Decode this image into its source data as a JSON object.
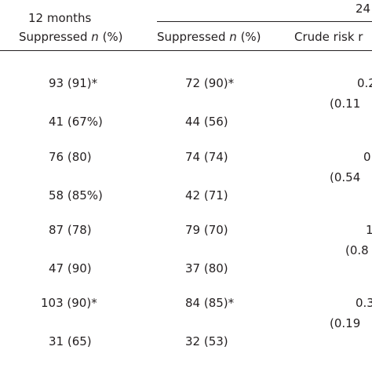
{
  "header": {
    "col12_top": "12 months",
    "col24_top": "24",
    "suppressed_label": "Suppressed ",
    "n_label": "n",
    "pct_label": " (%)",
    "crude_label": "Crude risk r"
  },
  "rows": [
    {
      "c12": "93 (91)*",
      "c24": "72 (90)*",
      "crude": "0.2",
      "ci": ""
    },
    {
      "c12": "",
      "c24": "",
      "crude": "",
      "ci": "(0.11"
    },
    {
      "c12": "41 (67%)",
      "c24": "44 (56)",
      "crude": "",
      "ci": ""
    },
    {
      "c12": "76 (80)",
      "c24": "74 (74)",
      "crude": "0",
      "ci": ""
    },
    {
      "c12": "",
      "c24": "",
      "crude": "",
      "ci": "(0.54"
    },
    {
      "c12": "58 (85%)",
      "c24": "42 (71)",
      "crude": "",
      "ci": ""
    },
    {
      "c12": "87 (78)",
      "c24": "79 (70)",
      "crude": "1",
      "ci": ""
    },
    {
      "c12": "",
      "c24": "",
      "crude": "",
      "ci": "(0.8"
    },
    {
      "c12": "47 (90)",
      "c24": "37 (80)",
      "crude": "",
      "ci": ""
    },
    {
      "c12": "103 (90)*",
      "c24": "84 (85)*",
      "crude": "0.3",
      "ci": ""
    },
    {
      "c12": "",
      "c24": "",
      "crude": "",
      "ci": "(0.19"
    },
    {
      "c12": "31 (65)",
      "c24": "32 (53)",
      "crude": "",
      "ci": ""
    }
  ]
}
